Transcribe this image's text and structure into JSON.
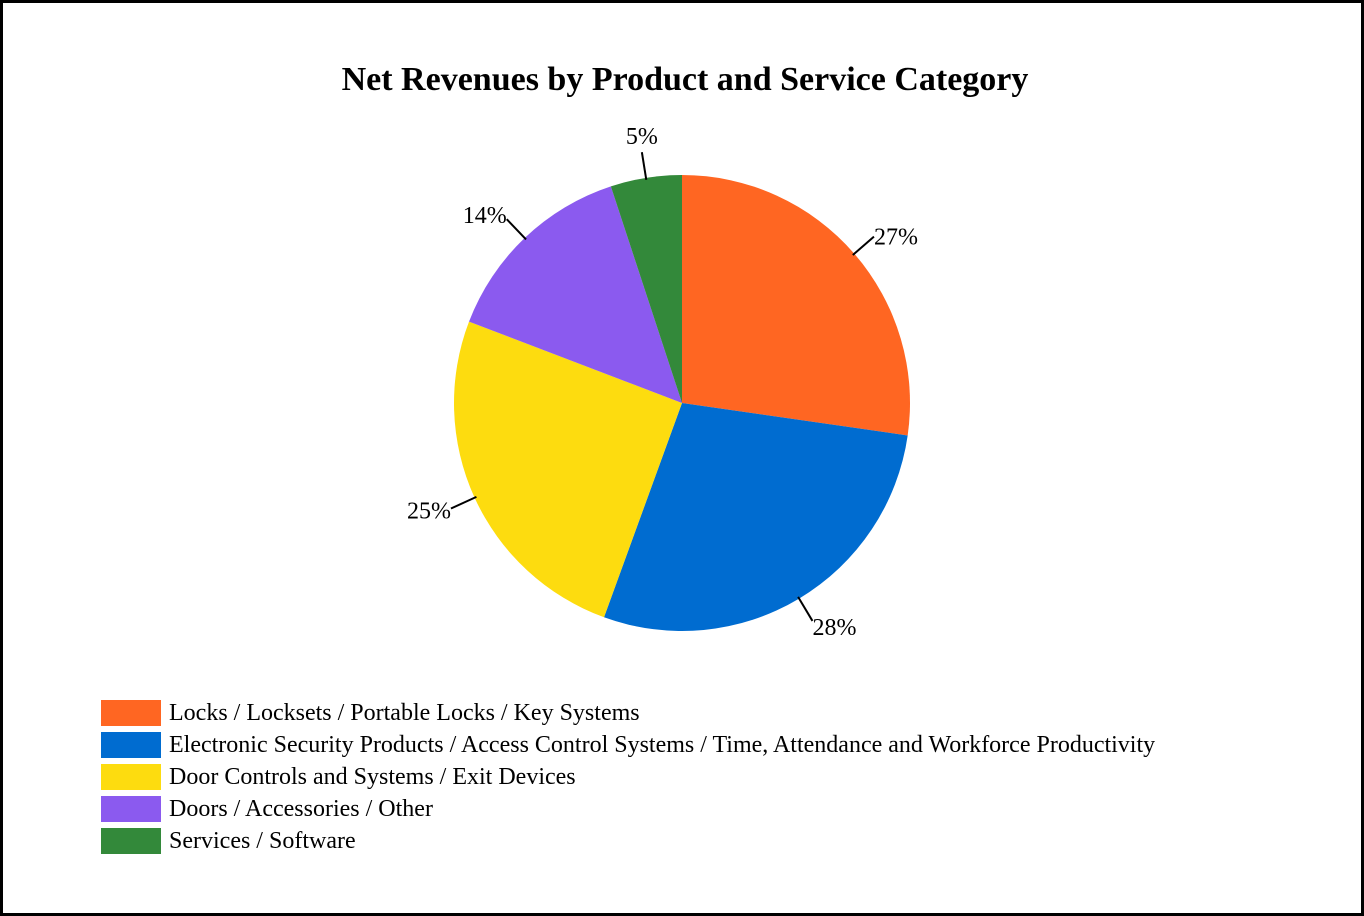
{
  "chart_data": {
    "type": "pie",
    "title": "Net Revenues by Product and Service Category",
    "legend_position": "bottom-left",
    "slices": [
      {
        "name": "Locks / Locksets / Portable Locks / Key Systems",
        "value": 27,
        "label": "27%",
        "color": "#FF6622"
      },
      {
        "name": "Electronic Security Products / Access Control Systems / Time, Attendance and Workforce Productivity",
        "value": 28,
        "label": "28%",
        "color": "#006CD0"
      },
      {
        "name": "Door Controls and Systems / Exit Devices",
        "value": 25,
        "label": "25%",
        "color": "#FDDC0F"
      },
      {
        "name": "Doors / Accessories / Other",
        "value": 14,
        "label": "14%",
        "color": "#8B5AEF"
      },
      {
        "name": "Services / Software",
        "value": 5,
        "label": "5%",
        "color": "#33893A"
      }
    ]
  }
}
